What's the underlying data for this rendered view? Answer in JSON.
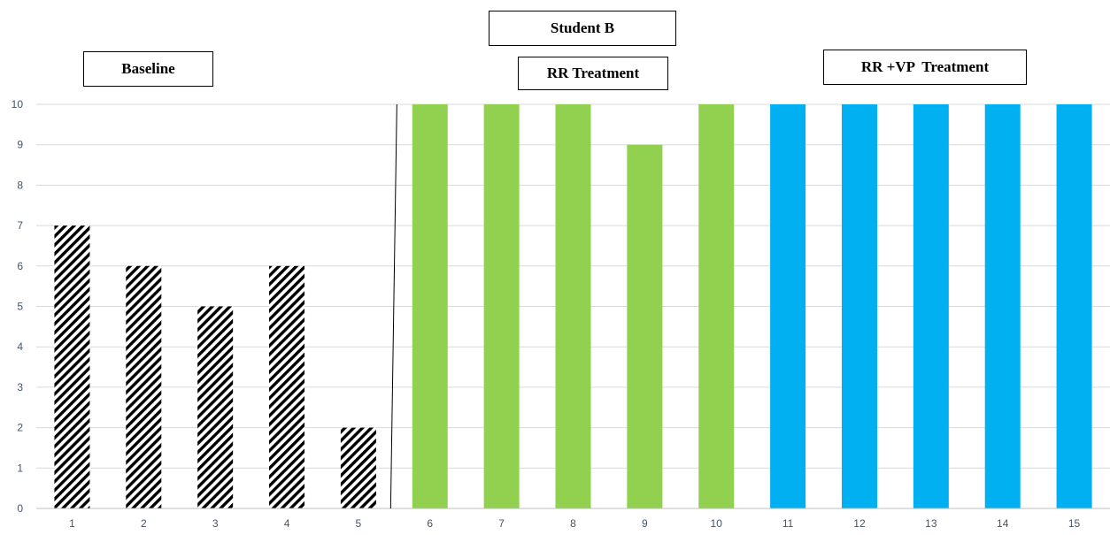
{
  "chart_data": {
    "type": "bar",
    "title": "Student B",
    "xlabel": "",
    "ylabel": "",
    "categories": [
      "1",
      "2",
      "3",
      "4",
      "5",
      "6",
      "7",
      "8",
      "9",
      "10",
      "11",
      "12",
      "13",
      "14",
      "15"
    ],
    "values": [
      7,
      6,
      5,
      6,
      2,
      10,
      10,
      10,
      9,
      10,
      10,
      10,
      10,
      10,
      10
    ],
    "ylim": [
      0,
      10
    ],
    "yticks": [
      0,
      1,
      2,
      3,
      4,
      5,
      6,
      7,
      8,
      9,
      10
    ],
    "grid": true,
    "phases": [
      {
        "label": "Baseline",
        "fill": "diagonal-hatch-black",
        "categories": [
          "1",
          "2",
          "3",
          "4",
          "5"
        ]
      },
      {
        "label": "RR Treatment",
        "color": "#92D050",
        "categories": [
          "6",
          "7",
          "8",
          "9",
          "10"
        ]
      },
      {
        "label": "RR +VP  Treatment",
        "color": "#00B0F0",
        "categories": [
          "11",
          "12",
          "13",
          "14",
          "15"
        ]
      }
    ],
    "phase_change_line": "between 5 and 6"
  }
}
